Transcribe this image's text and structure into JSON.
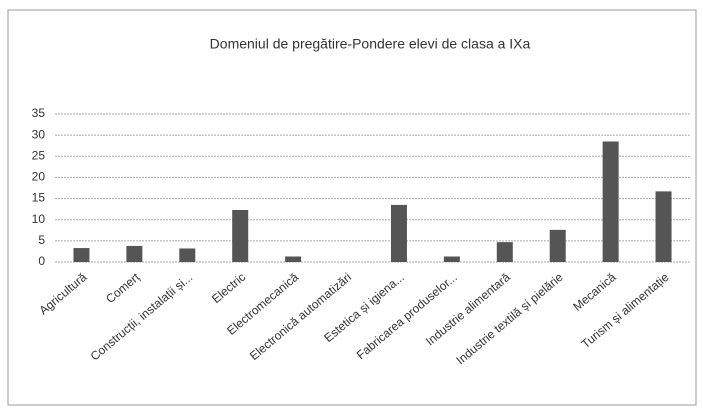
{
  "chart_data": {
    "type": "bar",
    "title": "Domeniul de pregătire-Pondere elevi de clasa a IXa",
    "categories": [
      "Agricultură",
      "Comerț",
      "Construcții, instalații și...",
      "Electric",
      "Electromecanică",
      "Electronică automatizări",
      "Estetica și igiena...",
      "Fabricarea produselor...",
      "Industrie alimentară",
      "Industrie textilă și pielărie",
      "Mecanică",
      "Turism și alimentație"
    ],
    "values": [
      3.3,
      3.8,
      3.2,
      12.3,
      1.3,
      0,
      13.5,
      1.3,
      4.7,
      7.6,
      28.5,
      16.7
    ],
    "color": "#555555",
    "ylim": [
      0,
      35
    ],
    "yticks": [
      0,
      5,
      10,
      15,
      20,
      25,
      30,
      35
    ],
    "grid": true
  }
}
